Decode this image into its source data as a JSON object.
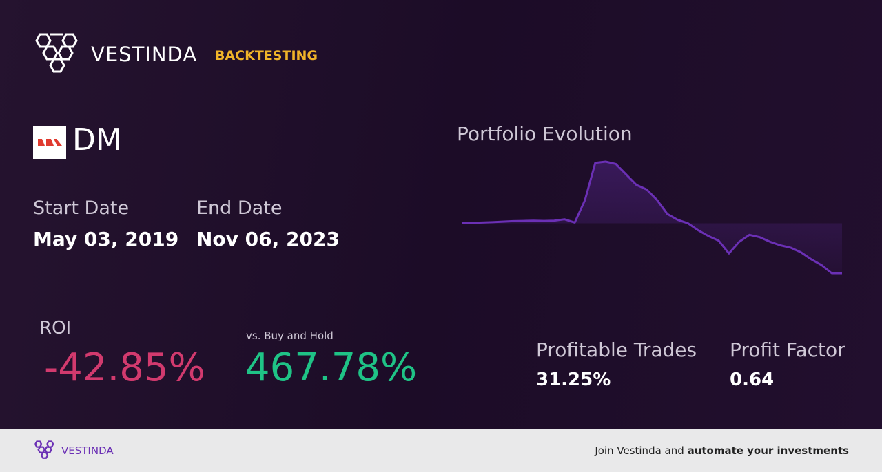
{
  "header": {
    "brand": "VESTINDA",
    "section": "BACKTESTING"
  },
  "asset": {
    "ticker": "DM"
  },
  "dates": {
    "start_label": "Start Date",
    "start": "May 03, 2019",
    "end_label": "End Date",
    "end": "Nov 06, 2023"
  },
  "roi": {
    "label": "ROI",
    "value": "-42.85%",
    "benchmark_label": "vs. Buy and Hold",
    "benchmark": "467.78%"
  },
  "stats": [
    {
      "label": "Profitable Trades",
      "value": "31.25%"
    },
    {
      "label": "Profit Factor",
      "value": "0.64"
    }
  ],
  "chart": {
    "type": "line",
    "title": "Portfolio Evolution",
    "color": "#6b30b5",
    "values": [
      100,
      100.3,
      100.6,
      100.9,
      101.4,
      101.8,
      102,
      102.2,
      102,
      102.2,
      103.4,
      100.6,
      120,
      152,
      153,
      151,
      142,
      133,
      129,
      120,
      108,
      103,
      100,
      94,
      89,
      85,
      74,
      84,
      90,
      88,
      84,
      81,
      79,
      75,
      69,
      64,
      57,
      57
    ]
  },
  "footer": {
    "brand": "VESTINDA",
    "cta": "Join Vestinda and",
    "cta_bold": "automate your investments"
  }
}
